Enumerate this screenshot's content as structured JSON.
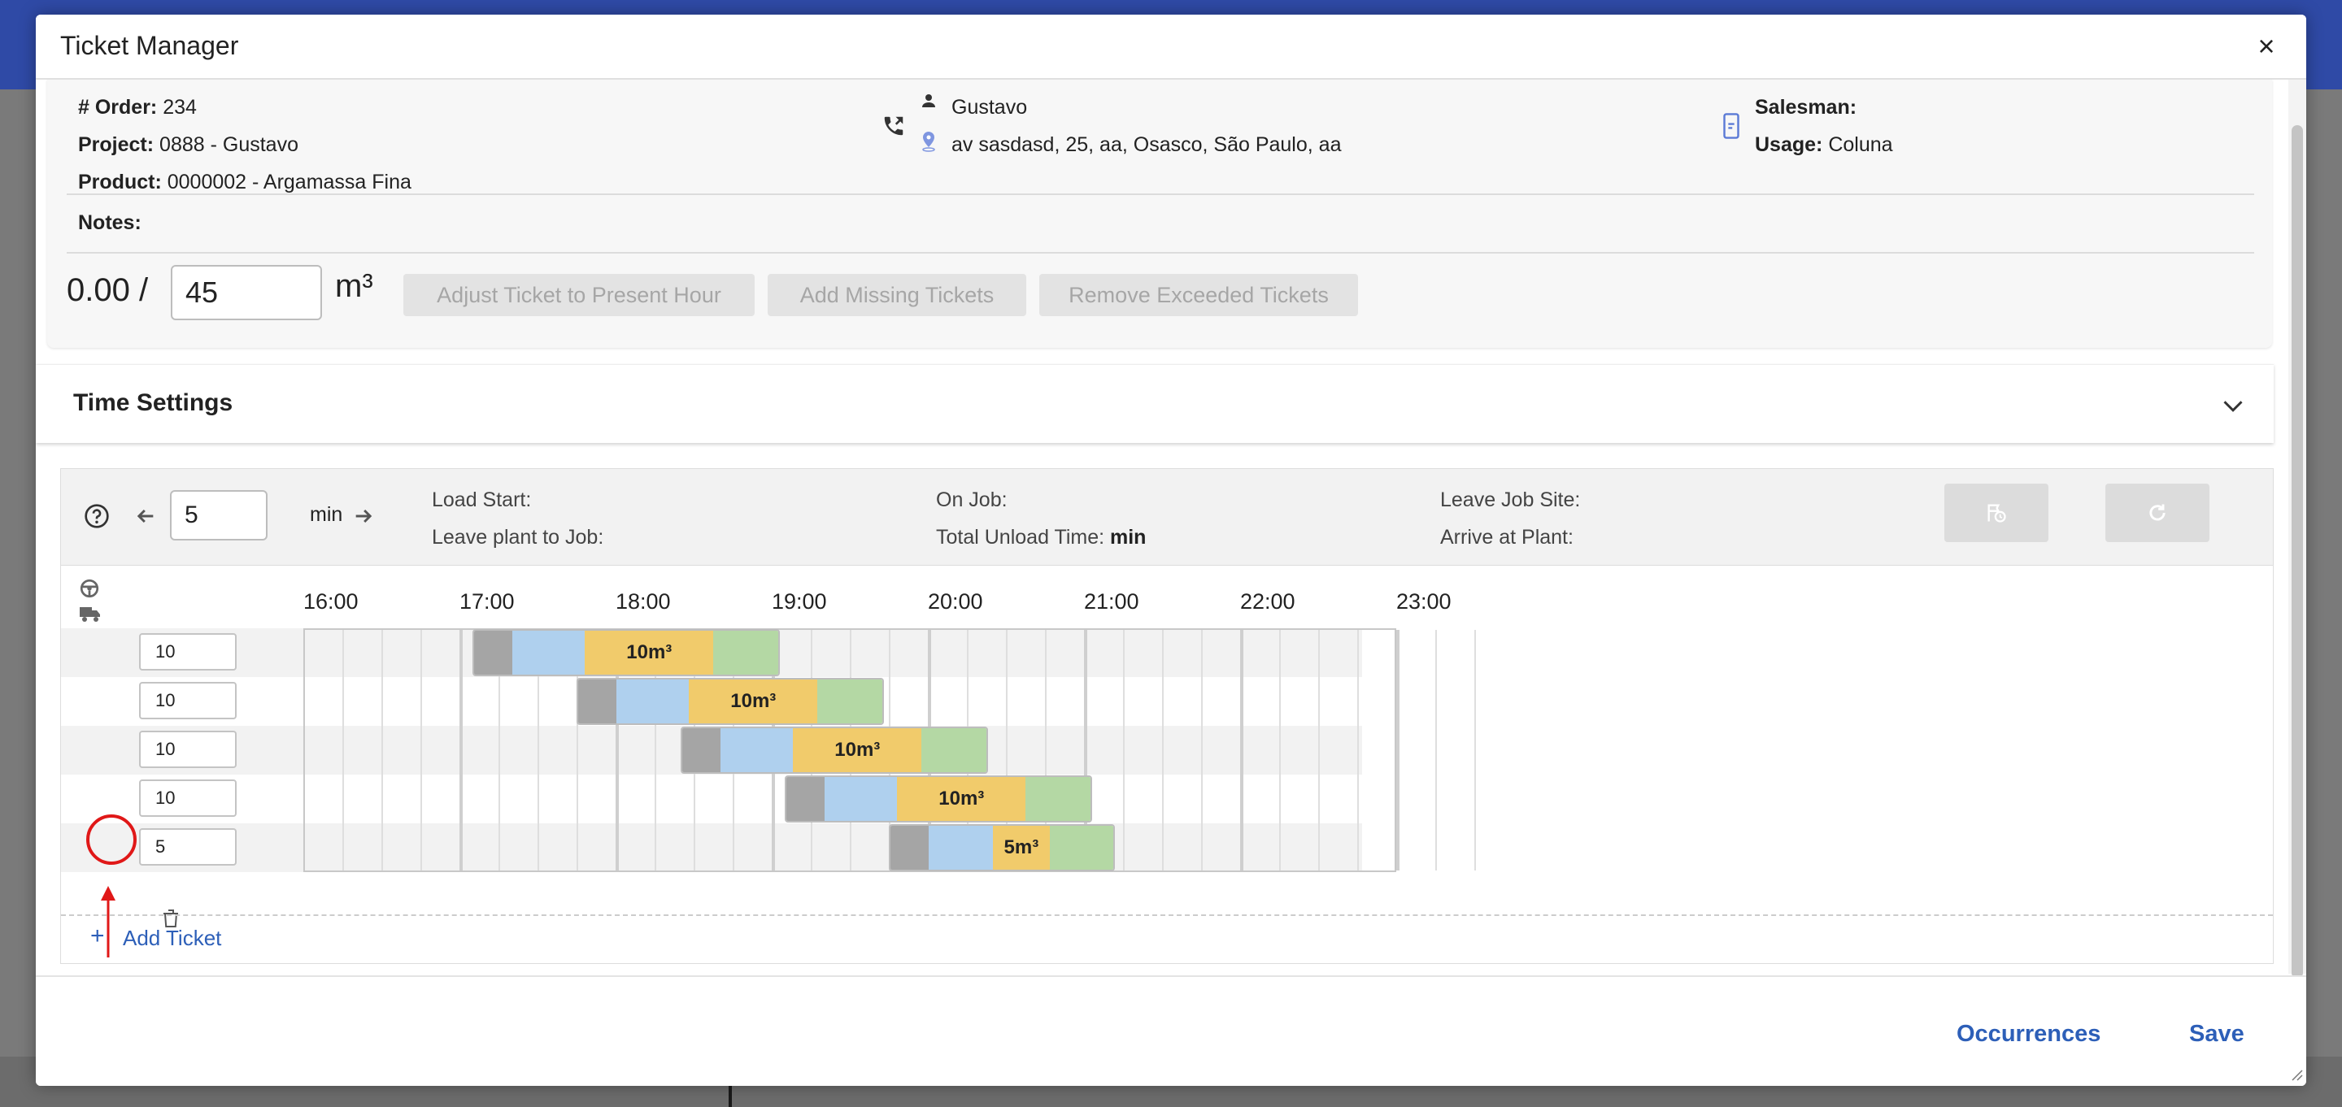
{
  "modal": {
    "title": "Ticket Manager",
    "close_label": "×"
  },
  "order": {
    "order_label": "# Order:",
    "order_value": "234",
    "project_label": "Project:",
    "project_value": "0888 - Gustavo",
    "product_label": "Product:",
    "product_value": "0000002 - Argamassa Fina",
    "notes_label": "Notes:",
    "contact_name": "Gustavo",
    "address": "av sasdasd, 25, aa, Osasco, São Paulo, aa",
    "salesman_label": "Salesman:",
    "usage_label": "Usage:",
    "usage_value": "Coluna"
  },
  "volume": {
    "delivered": "0.00 /",
    "total": "45",
    "unit": "m³"
  },
  "actions": {
    "adjust_label": "Adjust Ticket to Present Hour",
    "add_missing_label": "Add Missing Tickets",
    "remove_exceeded_label": "Remove Exceeded Tickets"
  },
  "time_settings": {
    "title": "Time Settings"
  },
  "schedule": {
    "step_value": "5",
    "step_unit": "min",
    "load_start_label": "Load Start:",
    "leave_plant_label": "Leave plant to Job:",
    "on_job_label": "On Job:",
    "total_unload_label": "Total Unload Time:",
    "total_unload_value": "min",
    "leave_job_label": "Leave Job Site:",
    "arrive_plant_label": "Arrive at Plant:",
    "hours": [
      "16:00",
      "17:00",
      "18:00",
      "19:00",
      "20:00",
      "21:00",
      "22:00",
      "23:00"
    ],
    "tickets": [
      {
        "qty": "10",
        "label": "10m³",
        "load_start": "17:05"
      },
      {
        "qty": "10",
        "label": "10m³",
        "load_start": "17:45"
      },
      {
        "qty": "10",
        "label": "10m³",
        "load_start": "18:25"
      },
      {
        "qty": "10",
        "label": "10m³",
        "load_start": "19:05"
      },
      {
        "qty": "5",
        "label": "5m³",
        "load_start": "19:45"
      }
    ],
    "add_ticket_label": "Add Ticket"
  },
  "footer": {
    "occurrences_label": "Occurrences",
    "save_label": "Save"
  },
  "colors": {
    "accent": "#2d5fb8",
    "load": "#a5a5a5",
    "travel": "#afd0ee",
    "unload": "#f1cb6b",
    "return": "#b4d8a4",
    "annotation": "#e01818"
  }
}
